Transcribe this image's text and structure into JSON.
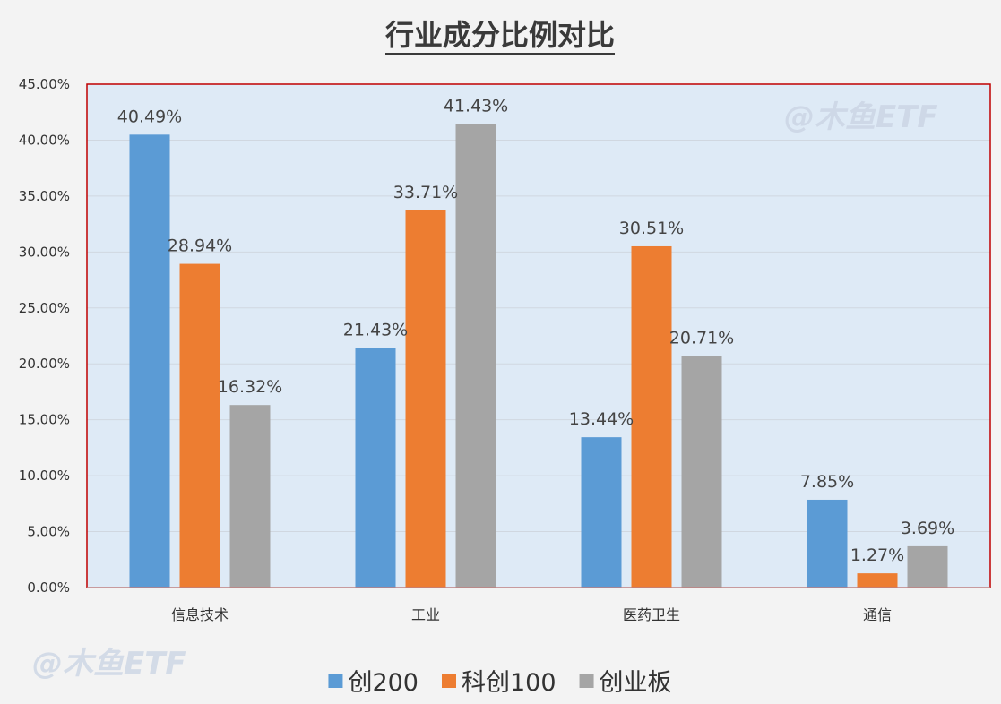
{
  "watermark": "@木鱼ETF",
  "chart_data": {
    "type": "bar",
    "title": "行业成分比例对比",
    "categories": [
      "信息技术",
      "工业",
      "医药卫生",
      "通信"
    ],
    "series": [
      {
        "name": "创200",
        "color": "#5b9bd5",
        "values": [
          40.49,
          21.43,
          13.44,
          7.85
        ]
      },
      {
        "name": "科创100",
        "color": "#ed7d31",
        "values": [
          28.94,
          33.71,
          30.51,
          1.27
        ]
      },
      {
        "name": "创业板",
        "color": "#a5a5a5",
        "values": [
          16.32,
          41.43,
          20.71,
          3.69
        ]
      }
    ],
    "data_labels": [
      [
        "40.49%",
        "21.43%",
        "13.44%",
        "7.85%"
      ],
      [
        "28.94%",
        "33.71%",
        "30.51%",
        "1.27%"
      ],
      [
        "16.32%",
        "41.43%",
        "20.71%",
        "3.69%"
      ]
    ],
    "ylim": [
      0,
      45
    ],
    "yticks": [
      0,
      5,
      10,
      15,
      20,
      25,
      30,
      35,
      40,
      45
    ],
    "ytick_labels": [
      "0.00%",
      "5.00%",
      "10.00%",
      "15.00%",
      "20.00%",
      "25.00%",
      "30.00%",
      "35.00%",
      "40.00%",
      "45.00%"
    ],
    "grid": true,
    "legend_position": "bottom",
    "plot_background": "#deeaf6",
    "plot_border_color": "#c00000"
  }
}
